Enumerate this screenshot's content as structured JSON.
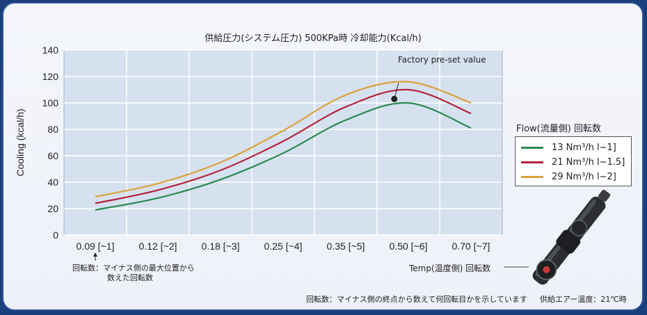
{
  "chart_data": {
    "type": "line",
    "title": "供給圧力(システム圧力) 500KPa時 冷却能力(Kcal/h)",
    "ylabel": "Cooling (kcal/h)",
    "xlabel": "",
    "ylim": [
      0,
      140
    ],
    "yticks": [
      "0",
      "20",
      "40",
      "60",
      "80",
      "100",
      "120",
      "140"
    ],
    "grid": true,
    "categories": [
      "0.09 [~1]",
      "0.12 [~2]",
      "0.18 [~3]",
      "0.25 [~4]",
      "0.35 [~5]",
      "0.50 [~6]",
      "0.70 [~7]"
    ],
    "series": [
      {
        "name": "13 Nm³/h  l~1]",
        "color": "#2a8a4e",
        "x": [
          0.09,
          0.12,
          0.18,
          0.25,
          0.35,
          0.5,
          0.7
        ],
        "values": [
          19,
          28,
          42,
          62,
          87,
          100,
          81
        ]
      },
      {
        "name": "21 Nm³/h  l~1.5]",
        "color": "#b5233b",
        "x": [
          0.09,
          0.12,
          0.18,
          0.25,
          0.35,
          0.5,
          0.7
        ],
        "values": [
          24,
          34,
          49,
          71,
          97,
          110,
          92
        ]
      },
      {
        "name": "29 Nm³/h  l~2]",
        "color": "#dba23c",
        "x": [
          0.09,
          0.12,
          0.18,
          0.25,
          0.35,
          0.5,
          0.7
        ],
        "values": [
          29,
          39,
          55,
          79,
          106,
          116,
          100
        ]
      }
    ],
    "annotation": {
      "text": "Factory pre-set value",
      "x_index": 5,
      "x_offset": -0.5,
      "value": 103
    },
    "legend_title": "Flow(流量側) 回転数",
    "legend_placement": "right"
  },
  "notes": {
    "x_arrow_note_line1": "回転数：マイナス側の最大位置から",
    "x_arrow_note_line2": "数えた回転数",
    "temp_label": "Temp(温度側) 回転数",
    "bottom_note": "回転数：マイナス側の終点から数えて何回転目かを示しています",
    "air_temp": "供給エアー温度：21℃時"
  }
}
